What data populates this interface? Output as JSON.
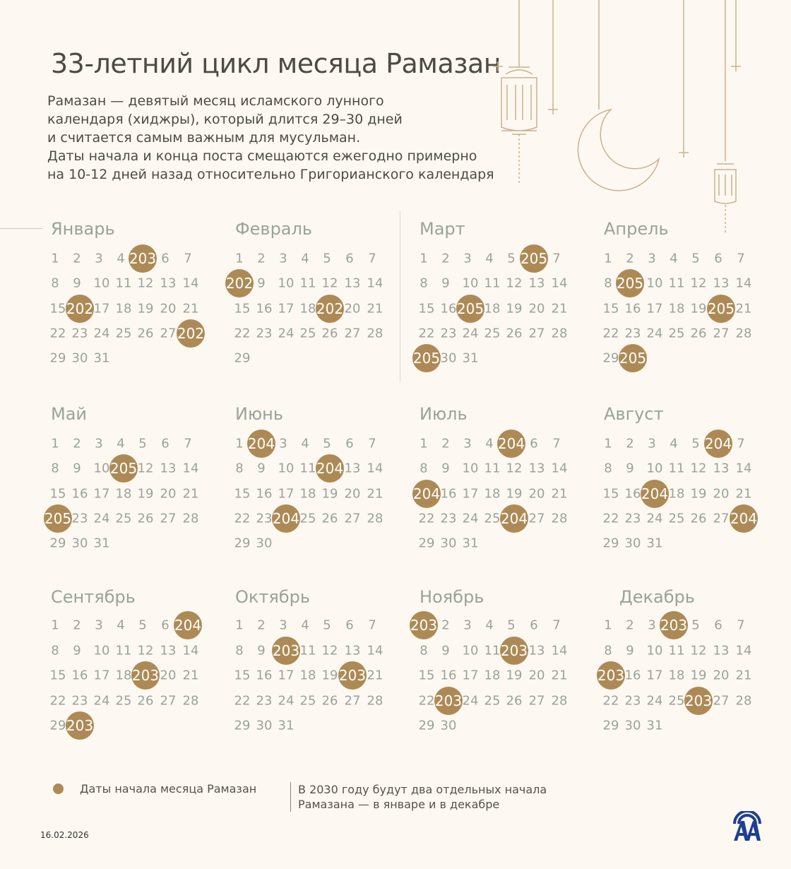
{
  "title": "33-летний цикл месяца Рамазан",
  "intro": "Рамазан — девятый месяц исламского лунного\nкалендаря (хиджры), который длится 29–30 дней\n и считается самым важным для мусульман.\nДаты начала и конца поста смещаются ежегодно примерно\nна 10-12 дней назад относительно Григорианского календаря",
  "colors": {
    "background": "#fdf8f1",
    "marker": "#ad8a55",
    "day_text": "#9aa39b",
    "logo": "#1d3f94"
  },
  "months": [
    {
      "name": "Январь",
      "days": 31,
      "marks": [
        {
          "day": 5,
          "label": "203"
        },
        {
          "day": 16,
          "label": "202"
        },
        {
          "day": 28,
          "label": "202"
        }
      ]
    },
    {
      "name": "Февраль",
      "days": 29,
      "marks": [
        {
          "day": 8,
          "label": "202"
        },
        {
          "day": 19,
          "label": "202"
        }
      ]
    },
    {
      "name": "Март",
      "days": 31,
      "marks": [
        {
          "day": 6,
          "label": "205"
        },
        {
          "day": 17,
          "label": "205"
        },
        {
          "day": 29,
          "label": "205"
        }
      ]
    },
    {
      "name": "Апрель",
      "days": 30,
      "marks": [
        {
          "day": 9,
          "label": "205"
        },
        {
          "day": 20,
          "label": "205"
        },
        {
          "day": 30,
          "label": "205"
        }
      ]
    },
    {
      "name": "Май",
      "days": 31,
      "marks": [
        {
          "day": 11,
          "label": "205"
        },
        {
          "day": 22,
          "label": "205"
        }
      ]
    },
    {
      "name": "Июнь",
      "days": 30,
      "marks": [
        {
          "day": 2,
          "label": "204"
        },
        {
          "day": 12,
          "label": "204"
        },
        {
          "day": 24,
          "label": "204"
        }
      ]
    },
    {
      "name": "Июль",
      "days": 31,
      "marks": [
        {
          "day": 5,
          "label": "204"
        },
        {
          "day": 15,
          "label": "204"
        },
        {
          "day": 26,
          "label": "204"
        }
      ]
    },
    {
      "name": "Август",
      "days": 31,
      "marks": [
        {
          "day": 6,
          "label": "204"
        },
        {
          "day": 17,
          "label": "204"
        },
        {
          "day": 28,
          "label": "204"
        }
      ]
    },
    {
      "name": "Сентябрь",
      "days": 30,
      "marks": [
        {
          "day": 7,
          "label": "204"
        },
        {
          "day": 19,
          "label": "203"
        },
        {
          "day": 30,
          "label": "203"
        }
      ]
    },
    {
      "name": "Октябрь",
      "days": 31,
      "marks": [
        {
          "day": 10,
          "label": "203"
        },
        {
          "day": 20,
          "label": "203"
        }
      ]
    },
    {
      "name": "Ноябрь",
      "days": 30,
      "marks": [
        {
          "day": 1,
          "label": "203"
        },
        {
          "day": 12,
          "label": "203"
        },
        {
          "day": 23,
          "label": "203"
        }
      ]
    },
    {
      "name": "Декабрь",
      "days": 31,
      "marks": [
        {
          "day": 4,
          "label": "203"
        },
        {
          "day": 15,
          "label": "203"
        },
        {
          "day": 26,
          "label": "203"
        }
      ]
    }
  ],
  "legend": {
    "label": "Даты начала месяца Рамазан"
  },
  "note": "В 2030 году будут два отдельных начала\nРамазана — в январе и в декабре",
  "date": "16.02.2026",
  "logo": {
    "text": "AA",
    "icon": "anadolu-agency-logo"
  }
}
